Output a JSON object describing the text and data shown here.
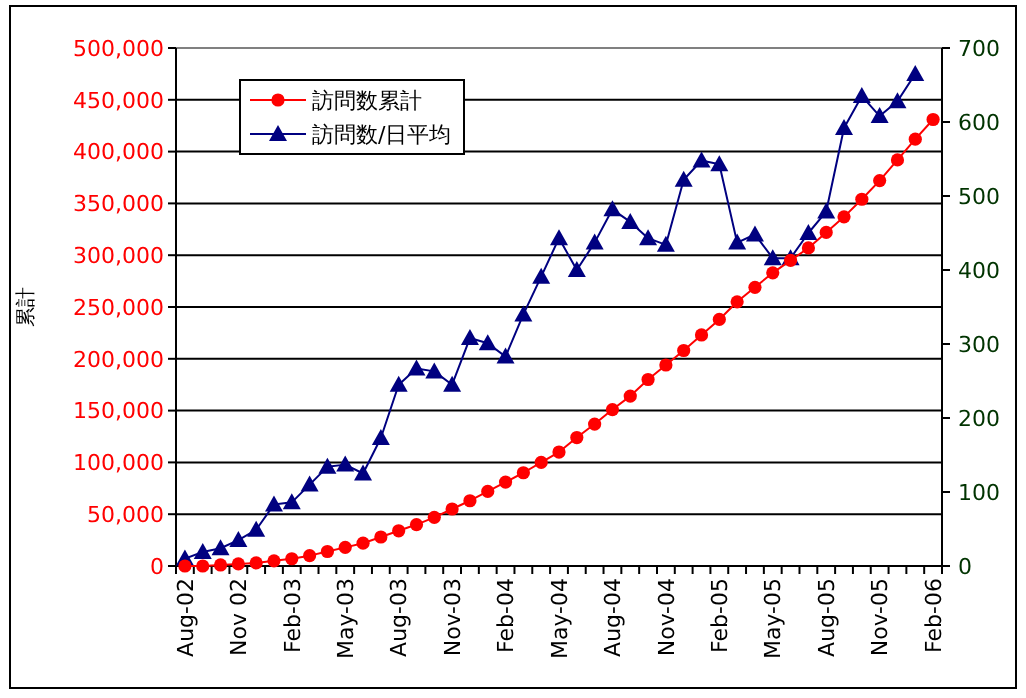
{
  "chart_data": {
    "type": "line",
    "ylabel": "累計",
    "categories": [
      "Aug-02",
      null,
      null,
      "Nov 02",
      null,
      null,
      "Feb-03",
      null,
      null,
      "May-03",
      null,
      null,
      "Aug-03",
      null,
      null,
      "Nov-03",
      null,
      null,
      "Feb-04",
      null,
      null,
      "May-04",
      null,
      null,
      "Aug-04",
      null,
      null,
      "Nov-04",
      null,
      null,
      "Feb-05",
      null,
      null,
      "May-05",
      null,
      null,
      "Aug-05",
      null,
      null,
      "Nov-05",
      null,
      null,
      "Feb-06"
    ],
    "series": [
      {
        "name": "訪問数累計",
        "color": "#ff0000",
        "marker": "circle",
        "values": [
          0,
          0,
          1000,
          2000,
          3000,
          5000,
          7000,
          10000,
          14000,
          18000,
          22000,
          28000,
          34000,
          40000,
          47000,
          55000,
          63000,
          72000,
          81000,
          90000,
          100000,
          110000,
          124000,
          137000,
          151000,
          164000,
          180000,
          194000,
          208000,
          223000,
          238000,
          255000,
          269000,
          283000,
          295000,
          307000,
          322000,
          337000,
          354000,
          372000,
          392000,
          412000,
          431000
        ]
      },
      {
        "name": "訪問数/日平均",
        "color": "#000080",
        "marker": "triangle",
        "axis": "y2",
        "values": [
          10,
          19,
          24,
          35,
          49,
          83,
          86,
          110,
          134,
          137,
          125,
          173,
          245,
          267,
          263,
          245,
          308,
          301,
          283,
          340,
          391,
          443,
          400,
          437,
          482,
          465,
          443,
          434,
          522,
          548,
          543,
          437,
          448,
          416,
          416,
          450,
          479,
          592,
          635,
          608,
          628,
          665,
          null
        ]
      }
    ],
    "ylim": [
      0,
      500000
    ],
    "yticks": [
      {
        "value": 0,
        "label": "0"
      },
      {
        "value": 50000,
        "label": "50,000"
      },
      {
        "value": 100000,
        "label": "100,000"
      },
      {
        "value": 150000,
        "label": "150,000"
      },
      {
        "value": 200000,
        "label": "200,000"
      },
      {
        "value": 250000,
        "label": "250,000"
      },
      {
        "value": 300000,
        "label": "300,000"
      },
      {
        "value": 350000,
        "label": "350,000"
      },
      {
        "value": 400000,
        "label": "400,000"
      },
      {
        "value": 450000,
        "label": "450,000"
      },
      {
        "value": 500000,
        "label": "500,000"
      }
    ],
    "y2lim": [
      0,
      700
    ],
    "y2ticks": [
      0,
      100,
      200,
      300,
      400,
      500,
      600,
      700
    ],
    "grid": "y",
    "legend": "top left",
    "line_style": "solid"
  }
}
